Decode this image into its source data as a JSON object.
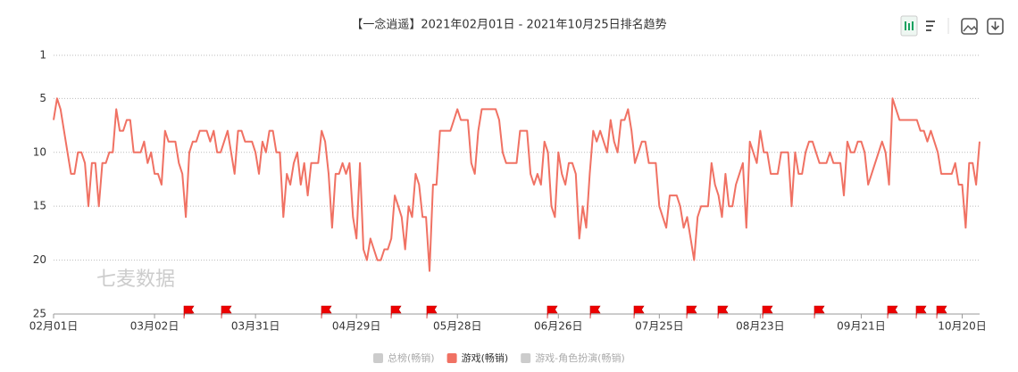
{
  "chart_data": {
    "type": "line",
    "title": "【一念逍遥】2021年02月01日 - 2021年10月25日排名趋势",
    "watermark": "七麦数据",
    "categories": [
      "02月01日",
      null,
      null,
      null,
      null,
      null,
      null,
      null,
      null,
      null,
      null,
      null,
      null,
      null,
      null,
      null,
      null,
      null,
      null,
      null,
      null,
      null,
      null,
      null,
      null,
      null,
      null,
      null,
      null,
      "03月02日",
      null,
      null,
      null,
      null,
      null,
      null,
      null,
      null,
      null,
      null,
      null,
      null,
      null,
      null,
      null,
      null,
      null,
      null,
      null,
      null,
      null,
      null,
      null,
      null,
      null,
      null,
      null,
      null,
      "03月31日",
      null,
      null,
      null,
      null,
      null,
      null,
      null,
      null,
      null,
      null,
      null,
      null,
      null,
      null,
      null,
      null,
      null,
      null,
      null,
      null,
      null,
      null,
      null,
      null,
      null,
      null,
      null,
      null,
      "04月29日",
      null,
      null,
      null,
      null,
      null,
      null,
      null,
      null,
      null,
      null,
      null,
      null,
      null,
      null,
      null,
      null,
      null,
      null,
      null,
      null,
      null,
      null,
      null,
      null,
      null,
      null,
      null,
      null,
      "05月28日",
      null,
      null,
      null,
      null,
      null,
      null,
      null,
      null,
      null,
      null,
      null,
      null,
      null,
      null,
      null,
      null,
      null,
      null,
      null,
      null,
      null,
      null,
      null,
      null,
      null,
      null,
      null,
      null,
      "06月26日",
      null,
      null,
      null,
      null,
      null,
      null,
      null,
      null,
      null,
      null,
      null,
      null,
      null,
      null,
      null,
      null,
      null,
      null,
      null,
      null,
      null,
      null,
      null,
      null,
      null,
      null,
      null,
      null,
      "07月25日",
      null,
      null,
      null,
      null,
      null,
      null,
      null,
      null,
      null,
      null,
      null,
      null,
      null,
      null,
      null,
      null,
      null,
      null,
      null,
      null,
      null,
      null,
      null,
      null,
      null,
      null,
      null,
      null,
      "08月23日",
      null,
      null,
      null,
      null,
      null,
      null,
      null,
      null,
      null,
      null,
      null,
      null,
      null,
      null,
      null,
      null,
      null,
      null,
      null,
      null,
      null,
      null,
      null,
      null,
      null,
      null,
      null,
      null,
      "09月21日",
      null,
      null,
      null,
      null,
      null,
      null,
      null,
      null,
      null,
      null,
      null,
      null,
      null,
      null,
      null,
      null,
      null,
      null,
      null,
      null,
      null,
      null,
      null,
      null,
      null,
      null,
      null,
      null,
      "10月20日",
      null,
      null,
      null,
      null,
      null
    ],
    "series": [
      {
        "name": "游戏(畅销)",
        "color": "#f07163",
        "values": [
          7,
          5,
          6,
          8,
          10,
          12,
          12,
          10,
          10,
          11,
          15,
          11,
          11,
          15,
          11,
          11,
          10,
          10,
          6,
          8,
          8,
          7,
          7,
          10,
          10,
          10,
          9,
          11,
          10,
          12,
          12,
          13,
          8,
          9,
          9,
          9,
          11,
          12,
          16,
          10,
          9,
          9,
          8,
          8,
          8,
          9,
          8,
          10,
          10,
          9,
          8,
          10,
          12,
          8,
          8,
          9,
          9,
          9,
          10,
          12,
          9,
          10,
          8,
          8,
          10,
          10,
          16,
          12,
          13,
          11,
          10,
          13,
          11,
          14,
          11,
          11,
          11,
          8,
          9,
          12,
          17,
          12,
          12,
          11,
          12,
          11,
          16,
          18,
          11,
          19,
          20,
          18,
          19,
          20,
          20,
          19,
          19,
          18,
          14,
          15,
          16,
          19,
          15,
          16,
          12,
          13,
          16,
          16,
          21,
          13,
          13,
          8,
          8,
          8,
          8,
          7,
          6,
          7,
          7,
          7,
          11,
          12,
          8,
          6,
          6,
          6,
          6,
          6,
          7,
          10,
          11,
          11,
          11,
          11,
          8,
          8,
          8,
          12,
          13,
          12,
          13,
          9,
          10,
          15,
          16,
          10,
          12,
          13,
          11,
          11,
          12,
          18,
          15,
          17,
          12,
          8,
          9,
          8,
          9,
          10,
          7,
          9,
          10,
          7,
          7,
          6,
          8,
          11,
          10,
          9,
          9,
          11,
          11,
          11,
          15,
          16,
          17,
          14,
          14,
          14,
          15,
          17,
          16,
          18,
          20,
          16,
          15,
          15,
          15,
          11,
          13,
          14,
          16,
          12,
          15,
          15,
          13,
          12,
          11,
          17,
          9,
          10,
          11,
          8,
          10,
          10,
          12,
          12,
          12,
          10,
          10,
          10,
          15,
          10,
          12,
          12,
          10,
          9,
          9,
          10,
          11,
          11,
          11,
          10,
          11,
          11,
          11,
          14,
          9,
          10,
          10,
          9,
          9,
          10,
          13,
          12,
          11,
          10,
          9,
          10,
          13,
          5,
          6,
          7,
          7,
          7,
          7,
          7,
          7,
          8,
          8,
          9,
          8,
          9,
          10,
          12,
          12,
          12,
          12,
          11,
          13,
          13,
          17,
          11,
          11,
          13,
          9
        ]
      }
    ],
    "legend": [
      {
        "name": "总榜(畅销)",
        "color": "#cccccc"
      },
      {
        "name": "游戏(畅销)",
        "color": "#f07163"
      },
      {
        "name": "游戏-角色扮演(畅销)",
        "color": "#cccccc"
      }
    ],
    "ylim": [
      1,
      25
    ],
    "y_inverted": true,
    "yticks": [
      1,
      5,
      10,
      15,
      20,
      25
    ],
    "grid": true
  }
}
